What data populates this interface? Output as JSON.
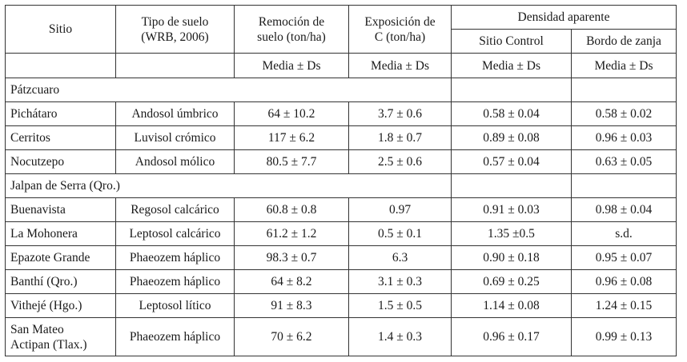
{
  "header": {
    "sitio": "Sitio",
    "tipo_suelo_line1": "Tipo de suelo",
    "tipo_suelo_line2": "(WRB, 2006)",
    "remocion_line1": "Remoción de",
    "remocion_line2": "suelo (ton/ha)",
    "exposicion_line1": "Exposición de",
    "exposicion_line2": "C (ton/ha)",
    "densidad": "Densidad aparente",
    "sitio_control": "Sitio Control",
    "bordo_zanja": "Bordo de zanja",
    "stat": "Media ± Ds"
  },
  "groups": [
    {
      "name": "Pátzcuaro",
      "rows": [
        {
          "sitio": "Pichátaro",
          "suelo": "Andosol úmbrico",
          "remocion": "64 ± 10.2",
          "exposicion": "3.7 ± 0.6",
          "control": "0.58 ± 0.04",
          "bordo": "0.58 ± 0.02"
        },
        {
          "sitio": "Cerritos",
          "suelo": "Luvisol crómico",
          "remocion": "117 ± 6.2",
          "exposicion": "1.8 ± 0.7",
          "control": "0.89 ± 0.08",
          "bordo": "0.96 ± 0.03"
        },
        {
          "sitio": "Nocutzepo",
          "suelo": "Andosol mólico",
          "remocion": "80.5 ± 7.7",
          "exposicion": "2.5 ± 0.6",
          "control": "0.57 ± 0.04",
          "bordo": "0.63 ± 0.05"
        }
      ]
    },
    {
      "name": "Jalpan de Serra (Qro.)",
      "rows": [
        {
          "sitio": "Buenavista",
          "suelo": "Regosol calcárico",
          "remocion": "60.8 ± 0.8",
          "exposicion": "0.97",
          "control": "0.91 ± 0.03",
          "bordo": "0.98 ± 0.04"
        },
        {
          "sitio": "La Mohonera",
          "suelo": "Leptosol calcárico",
          "remocion": "61.2 ± 1.2",
          "exposicion": "0.5 ± 0.1",
          "control": "1.35 ±0.5",
          "bordo": "s.d."
        },
        {
          "sitio": "Epazote Grande",
          "suelo": "Phaeozem háplico",
          "remocion": "98.3 ± 0.7",
          "exposicion": "6.3",
          "control": "0.90 ± 0.18",
          "bordo": "0.95 ± 0.07"
        },
        {
          "sitio": "Banthí (Qro.)",
          "suelo": "Phaeozem háplico",
          "remocion": "64 ± 8.2",
          "exposicion": "3.1 ± 0.3",
          "control": "0.69 ± 0.25",
          "bordo": "0.96 ± 0.08"
        },
        {
          "sitio": "Vithejé (Hgo.)",
          "suelo": "Leptosol lítico",
          "remocion": "91 ± 8.3",
          "exposicion": "1.5 ± 0.5",
          "control": "1.14 ± 0.08",
          "bordo": "1.24 ± 0.15"
        }
      ]
    }
  ],
  "last_row": {
    "sitio_line1": "San Mateo",
    "sitio_line2": "Actipan (Tlax.)",
    "suelo": "Phaeozem háplico",
    "remocion": "70 ± 6.2",
    "exposicion": "1.4 ± 0.3",
    "control": "0.96 ± 0.17",
    "bordo": "0.99 ± 0.13"
  }
}
